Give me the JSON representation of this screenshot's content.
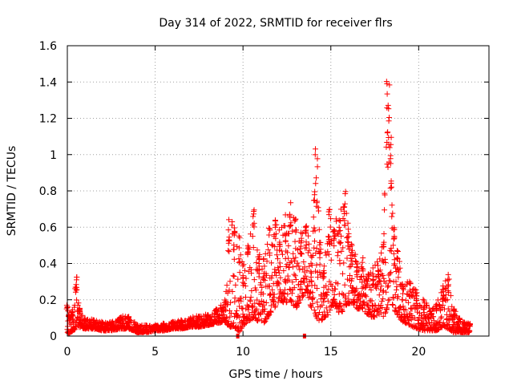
{
  "chart_data": {
    "type": "scatter",
    "title": "Day 314 of 2022, SRMTID for receiver flrs",
    "xlabel": "GPS time / hours",
    "ylabel": "SRMTID / TECUs",
    "xlim": [
      0,
      24
    ],
    "ylim": [
      0,
      1.6
    ],
    "x_ticks": [
      0,
      5,
      10,
      15,
      20
    ],
    "x_tick_labels": [
      "0",
      "5",
      "10",
      "15",
      "20"
    ],
    "y_ticks": [
      0,
      0.2,
      0.4,
      0.6,
      0.8,
      1.0,
      1.2,
      1.4,
      1.6
    ],
    "y_tick_labels": [
      "0",
      "0.2",
      "0.4",
      "0.6",
      "0.8",
      "1",
      "1.2",
      "1.4",
      "1.6"
    ],
    "grid": true,
    "marker": "+",
    "color": "#ff0000",
    "gap_markers": [
      {
        "x": 9.7,
        "y": 0
      },
      {
        "x": 13.5,
        "y": 0
      }
    ],
    "series": [
      {
        "name": "SRMTID",
        "envelope_x": [
          0.0,
          0.1,
          0.3,
          0.5,
          0.7,
          1.0,
          1.5,
          2.0,
          2.5,
          3.0,
          3.5,
          4.0,
          4.5,
          5.0,
          5.5,
          6.0,
          6.5,
          7.0,
          7.5,
          8.0,
          8.5,
          9.0,
          9.2,
          9.5,
          9.8,
          10.0,
          10.3,
          10.6,
          10.9,
          11.2,
          11.5,
          11.8,
          12.1,
          12.4,
          12.7,
          13.0,
          13.3,
          13.6,
          13.9,
          14.1,
          14.2,
          14.4,
          14.6,
          14.9,
          15.2,
          15.5,
          15.8,
          16.0,
          16.2,
          16.5,
          16.8,
          17.1,
          17.4,
          17.7,
          18.0,
          18.2,
          18.3,
          18.4,
          18.6,
          18.8,
          19.1,
          19.5,
          19.9,
          20.3,
          20.7,
          21.0,
          21.4,
          21.7,
          22.0,
          22.3,
          22.6,
          22.9
        ],
        "envelope_min": [
          0.02,
          0.01,
          0.03,
          0.04,
          0.05,
          0.04,
          0.04,
          0.03,
          0.03,
          0.04,
          0.04,
          0.02,
          0.02,
          0.03,
          0.03,
          0.04,
          0.04,
          0.05,
          0.05,
          0.06,
          0.07,
          0.08,
          0.05,
          0.05,
          0.02,
          0.06,
          0.08,
          0.1,
          0.08,
          0.07,
          0.12,
          0.15,
          0.2,
          0.18,
          0.2,
          0.15,
          0.2,
          0.25,
          0.15,
          0.12,
          0.1,
          0.08,
          0.1,
          0.12,
          0.18,
          0.12,
          0.15,
          0.18,
          0.18,
          0.15,
          0.15,
          0.12,
          0.1,
          0.12,
          0.1,
          0.15,
          0.2,
          0.2,
          0.15,
          0.1,
          0.08,
          0.06,
          0.04,
          0.03,
          0.03,
          0.03,
          0.05,
          0.04,
          0.02,
          0.02,
          0.02,
          0.02
        ],
        "envelope_max": [
          0.19,
          0.12,
          0.15,
          0.34,
          0.16,
          0.1,
          0.09,
          0.08,
          0.08,
          0.11,
          0.11,
          0.06,
          0.06,
          0.06,
          0.07,
          0.08,
          0.09,
          0.1,
          0.12,
          0.12,
          0.15,
          0.2,
          0.68,
          0.6,
          0.56,
          0.4,
          0.5,
          0.73,
          0.45,
          0.45,
          0.6,
          0.65,
          0.6,
          0.7,
          0.74,
          0.65,
          0.58,
          0.62,
          0.45,
          1.05,
          0.98,
          0.55,
          0.4,
          0.72,
          0.62,
          0.7,
          0.82,
          0.6,
          0.55,
          0.4,
          0.45,
          0.35,
          0.38,
          0.42,
          0.55,
          1.44,
          1.4,
          1.1,
          0.6,
          0.48,
          0.3,
          0.3,
          0.25,
          0.2,
          0.15,
          0.18,
          0.28,
          0.34,
          0.16,
          0.1,
          0.08,
          0.07
        ]
      }
    ]
  }
}
